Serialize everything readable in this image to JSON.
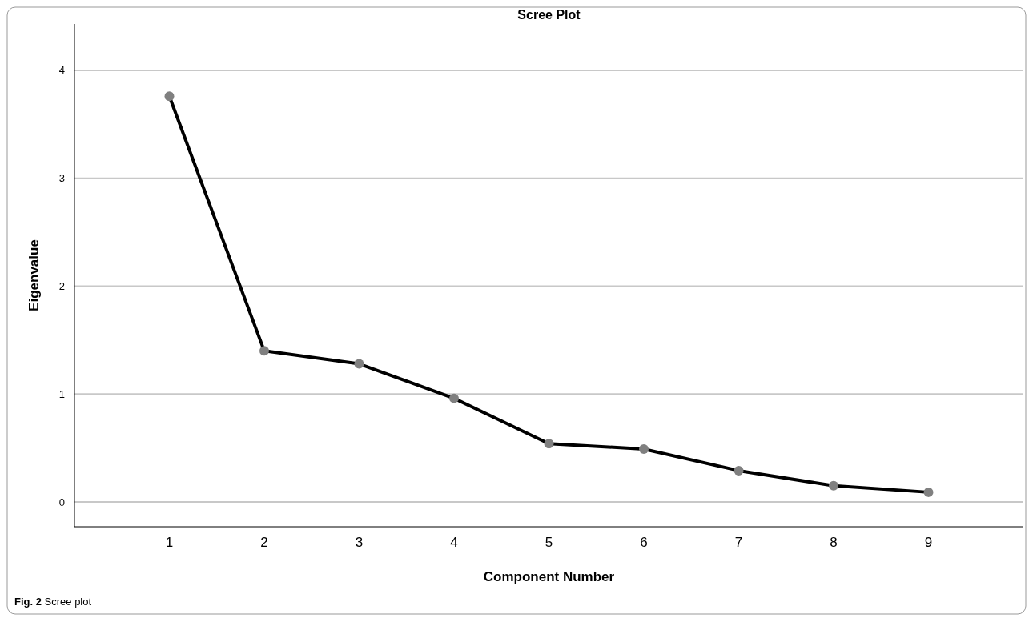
{
  "chart_data": {
    "type": "line",
    "title": "Scree Plot",
    "xlabel": "Component Number",
    "ylabel": "Eigenvalue",
    "x": [
      1,
      2,
      3,
      4,
      5,
      6,
      7,
      8,
      9
    ],
    "series": [
      {
        "color": "#000000",
        "values": [
          3.76,
          1.4,
          1.28,
          0.96,
          0.54,
          0.49,
          0.29,
          0.15,
          0.09
        ]
      }
    ],
    "xlim": [
      0,
      10
    ],
    "xticks": [
      1,
      2,
      3,
      4,
      5,
      6,
      7,
      8,
      9
    ],
    "ylim": [
      -0.23,
      4.43
    ],
    "yticks": [
      0,
      1,
      2,
      3,
      4
    ],
    "grid": "y",
    "marker": "circle",
    "line_style": "solid",
    "annotations": [
      "Fig. 2 Scree plot"
    ]
  }
}
